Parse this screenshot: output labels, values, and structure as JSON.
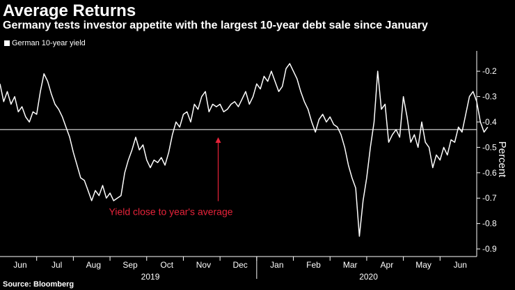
{
  "header": {
    "title": "Average Returns",
    "subtitle": "Germany tests investor appetite with the largest 10-year debt sale since January"
  },
  "footer": {
    "source": "Source: Bloomberg"
  },
  "colors": {
    "line": "#ffffff",
    "annotation": "#e8233a",
    "average_line": "#ffffff"
  },
  "chart_data": {
    "type": "line",
    "title": "Average Returns",
    "legend": [
      "German 10-year yield"
    ],
    "legend_position": "top-left",
    "ylabel": "Percent",
    "y_axis_inverted": true,
    "ylim": [
      -0.93,
      -0.12
    ],
    "yticks": [
      -0.2,
      -0.3,
      -0.4,
      -0.5,
      -0.6,
      -0.7,
      -0.8,
      -0.9
    ],
    "ytick_labels": [
      "-0.2",
      "-0.3",
      "-0.4",
      "-0.5",
      "-0.6",
      "-0.7",
      "-0.8",
      "-0.9"
    ],
    "xlim": [
      0,
      13
    ],
    "xticks": [
      {
        "label": "Jun",
        "x": 0.55
      },
      {
        "label": "Jul",
        "x": 1.55
      },
      {
        "label": "Aug",
        "x": 2.55
      },
      {
        "label": "Sep",
        "x": 3.55
      },
      {
        "label": "Oct",
        "x": 4.55
      },
      {
        "label": "Nov",
        "x": 5.55
      },
      {
        "label": "Dec",
        "x": 6.55
      },
      {
        "label": "Jan",
        "x": 7.55
      },
      {
        "label": "Feb",
        "x": 8.55
      },
      {
        "label": "Mar",
        "x": 9.55
      },
      {
        "label": "Apr",
        "x": 10.55
      },
      {
        "label": "May",
        "x": 11.55
      },
      {
        "label": "Jun",
        "x": 12.55
      }
    ],
    "year_labels": [
      {
        "label": "2019",
        "x": 4.1
      },
      {
        "label": "2020",
        "x": 10.05
      }
    ],
    "reference_line": {
      "y": -0.43,
      "label": "Yield close to year's average"
    },
    "annotation": {
      "text": "Yield close to year's average",
      "x": 5.95,
      "y": -0.72,
      "arrow_to_y": -0.46
    },
    "series": [
      {
        "name": "German 10-year yield",
        "points": [
          [
            0.0,
            -0.25
          ],
          [
            0.1,
            -0.32
          ],
          [
            0.2,
            -0.28
          ],
          [
            0.3,
            -0.33
          ],
          [
            0.4,
            -0.3
          ],
          [
            0.5,
            -0.36
          ],
          [
            0.6,
            -0.34
          ],
          [
            0.7,
            -0.38
          ],
          [
            0.8,
            -0.4
          ],
          [
            0.9,
            -0.36
          ],
          [
            1.0,
            -0.37
          ],
          [
            1.1,
            -0.28
          ],
          [
            1.2,
            -0.21
          ],
          [
            1.3,
            -0.24
          ],
          [
            1.4,
            -0.29
          ],
          [
            1.5,
            -0.33
          ],
          [
            1.6,
            -0.35
          ],
          [
            1.7,
            -0.38
          ],
          [
            1.8,
            -0.42
          ],
          [
            1.9,
            -0.46
          ],
          [
            2.0,
            -0.52
          ],
          [
            2.1,
            -0.57
          ],
          [
            2.2,
            -0.62
          ],
          [
            2.3,
            -0.63
          ],
          [
            2.4,
            -0.67
          ],
          [
            2.5,
            -0.71
          ],
          [
            2.6,
            -0.67
          ],
          [
            2.7,
            -0.69
          ],
          [
            2.8,
            -0.65
          ],
          [
            2.9,
            -0.7
          ],
          [
            3.0,
            -0.68
          ],
          [
            3.1,
            -0.71
          ],
          [
            3.2,
            -0.7
          ],
          [
            3.3,
            -0.69
          ],
          [
            3.4,
            -0.6
          ],
          [
            3.5,
            -0.55
          ],
          [
            3.6,
            -0.51
          ],
          [
            3.7,
            -0.46
          ],
          [
            3.8,
            -0.51
          ],
          [
            3.9,
            -0.49
          ],
          [
            4.0,
            -0.55
          ],
          [
            4.1,
            -0.58
          ],
          [
            4.2,
            -0.55
          ],
          [
            4.3,
            -0.56
          ],
          [
            4.4,
            -0.54
          ],
          [
            4.5,
            -0.57
          ],
          [
            4.6,
            -0.52
          ],
          [
            4.7,
            -0.45
          ],
          [
            4.8,
            -0.4
          ],
          [
            4.9,
            -0.42
          ],
          [
            5.0,
            -0.37
          ],
          [
            5.1,
            -0.36
          ],
          [
            5.2,
            -0.4
          ],
          [
            5.3,
            -0.33
          ],
          [
            5.4,
            -0.35
          ],
          [
            5.5,
            -0.3
          ],
          [
            5.6,
            -0.28
          ],
          [
            5.7,
            -0.36
          ],
          [
            5.8,
            -0.33
          ],
          [
            5.9,
            -0.34
          ],
          [
            6.0,
            -0.33
          ],
          [
            6.1,
            -0.36
          ],
          [
            6.2,
            -0.35
          ],
          [
            6.3,
            -0.33
          ],
          [
            6.4,
            -0.32
          ],
          [
            6.5,
            -0.34
          ],
          [
            6.6,
            -0.31
          ],
          [
            6.7,
            -0.28
          ],
          [
            6.8,
            -0.33
          ],
          [
            6.9,
            -0.3
          ],
          [
            7.0,
            -0.25
          ],
          [
            7.1,
            -0.27
          ],
          [
            7.2,
            -0.22
          ],
          [
            7.3,
            -0.24
          ],
          [
            7.4,
            -0.2
          ],
          [
            7.5,
            -0.24
          ],
          [
            7.6,
            -0.28
          ],
          [
            7.7,
            -0.26
          ],
          [
            7.8,
            -0.19
          ],
          [
            7.9,
            -0.17
          ],
          [
            8.0,
            -0.2
          ],
          [
            8.1,
            -0.23
          ],
          [
            8.2,
            -0.28
          ],
          [
            8.3,
            -0.32
          ],
          [
            8.4,
            -0.35
          ],
          [
            8.5,
            -0.4
          ],
          [
            8.6,
            -0.44
          ],
          [
            8.7,
            -0.39
          ],
          [
            8.8,
            -0.37
          ],
          [
            8.9,
            -0.4
          ],
          [
            9.0,
            -0.38
          ],
          [
            9.1,
            -0.41
          ],
          [
            9.2,
            -0.42
          ],
          [
            9.3,
            -0.45
          ],
          [
            9.4,
            -0.5
          ],
          [
            9.5,
            -0.57
          ],
          [
            9.6,
            -0.62
          ],
          [
            9.7,
            -0.66
          ],
          [
            9.8,
            -0.85
          ],
          [
            9.9,
            -0.71
          ],
          [
            10.0,
            -0.62
          ],
          [
            10.1,
            -0.5
          ],
          [
            10.2,
            -0.4
          ],
          [
            10.3,
            -0.2
          ],
          [
            10.4,
            -0.35
          ],
          [
            10.5,
            -0.33
          ],
          [
            10.6,
            -0.48
          ],
          [
            10.7,
            -0.45
          ],
          [
            10.8,
            -0.43
          ],
          [
            10.9,
            -0.46
          ],
          [
            11.0,
            -0.3
          ],
          [
            11.1,
            -0.38
          ],
          [
            11.2,
            -0.48
          ],
          [
            11.3,
            -0.45
          ],
          [
            11.4,
            -0.5
          ],
          [
            11.5,
            -0.4
          ],
          [
            11.6,
            -0.48
          ],
          [
            11.7,
            -0.5
          ],
          [
            11.8,
            -0.58
          ],
          [
            11.9,
            -0.53
          ],
          [
            12.0,
            -0.55
          ],
          [
            12.1,
            -0.5
          ],
          [
            12.2,
            -0.53
          ],
          [
            12.3,
            -0.47
          ],
          [
            12.4,
            -0.48
          ],
          [
            12.5,
            -0.42
          ],
          [
            12.6,
            -0.44
          ],
          [
            12.7,
            -0.37
          ],
          [
            12.8,
            -0.3
          ],
          [
            12.9,
            -0.28
          ],
          [
            13.0,
            -0.32
          ],
          [
            13.1,
            -0.4
          ],
          [
            13.2,
            -0.44
          ],
          [
            13.3,
            -0.42
          ]
        ]
      }
    ]
  }
}
